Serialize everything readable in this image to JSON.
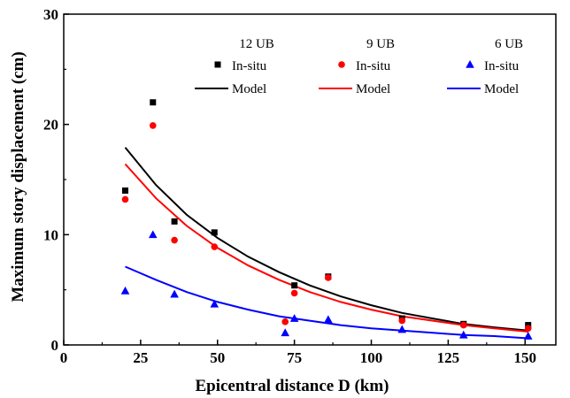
{
  "chart_data": {
    "type": "scatter",
    "xlabel": "Epicentral distance D (km)",
    "ylabel": "Maximum story displacement (cm)",
    "xlim": [
      0,
      160
    ],
    "ylim": [
      0,
      30
    ],
    "xticks": [
      0,
      25,
      50,
      75,
      100,
      125,
      150
    ],
    "yticks": [
      0,
      10,
      20,
      30
    ],
    "grid": false,
    "legend_placement": "top",
    "groups": [
      {
        "name": "12 UB",
        "color": "#000000",
        "marker": "square",
        "point_label": "In-situ",
        "line_label": "Model",
        "points": [
          {
            "x": 20,
            "y": 14.0
          },
          {
            "x": 29,
            "y": 22.0
          },
          {
            "x": 36,
            "y": 11.2
          },
          {
            "x": 49,
            "y": 10.2
          },
          {
            "x": 75,
            "y": 5.4
          },
          {
            "x": 86,
            "y": 6.2
          },
          {
            "x": 110,
            "y": 2.4
          },
          {
            "x": 130,
            "y": 1.9
          },
          {
            "x": 151,
            "y": 1.8
          }
        ],
        "model": [
          {
            "x": 20,
            "y": 17.9
          },
          {
            "x": 30,
            "y": 14.5
          },
          {
            "x": 40,
            "y": 11.8
          },
          {
            "x": 50,
            "y": 9.7
          },
          {
            "x": 60,
            "y": 8.0
          },
          {
            "x": 70,
            "y": 6.6
          },
          {
            "x": 80,
            "y": 5.4
          },
          {
            "x": 90,
            "y": 4.4
          },
          {
            "x": 100,
            "y": 3.6
          },
          {
            "x": 110,
            "y": 2.9
          },
          {
            "x": 120,
            "y": 2.4
          },
          {
            "x": 130,
            "y": 1.9
          },
          {
            "x": 140,
            "y": 1.6
          },
          {
            "x": 151,
            "y": 1.3
          }
        ]
      },
      {
        "name": "9 UB",
        "color": "#ff0000",
        "marker": "circle",
        "point_label": "In-situ",
        "line_label": "Model",
        "points": [
          {
            "x": 20,
            "y": 13.2
          },
          {
            "x": 29,
            "y": 19.9
          },
          {
            "x": 36,
            "y": 9.5
          },
          {
            "x": 49,
            "y": 8.9
          },
          {
            "x": 72,
            "y": 2.1
          },
          {
            "x": 75,
            "y": 4.7
          },
          {
            "x": 86,
            "y": 6.1
          },
          {
            "x": 110,
            "y": 2.2
          },
          {
            "x": 130,
            "y": 1.8
          },
          {
            "x": 151,
            "y": 1.5
          }
        ],
        "model": [
          {
            "x": 20,
            "y": 16.4
          },
          {
            "x": 30,
            "y": 13.3
          },
          {
            "x": 40,
            "y": 10.8
          },
          {
            "x": 50,
            "y": 8.8
          },
          {
            "x": 60,
            "y": 7.2
          },
          {
            "x": 70,
            "y": 5.9
          },
          {
            "x": 80,
            "y": 4.8
          },
          {
            "x": 90,
            "y": 3.9
          },
          {
            "x": 100,
            "y": 3.2
          },
          {
            "x": 110,
            "y": 2.6
          },
          {
            "x": 120,
            "y": 2.2
          },
          {
            "x": 130,
            "y": 1.8
          },
          {
            "x": 140,
            "y": 1.5
          },
          {
            "x": 151,
            "y": 1.2
          }
        ]
      },
      {
        "name": "6 UB",
        "color": "#0000ff",
        "marker": "triangle",
        "point_label": "In-situ",
        "line_label": "Model",
        "points": [
          {
            "x": 20,
            "y": 4.9
          },
          {
            "x": 29,
            "y": 10.0
          },
          {
            "x": 36,
            "y": 4.6
          },
          {
            "x": 49,
            "y": 3.7
          },
          {
            "x": 72,
            "y": 1.1
          },
          {
            "x": 75,
            "y": 2.4
          },
          {
            "x": 86,
            "y": 2.3
          },
          {
            "x": 110,
            "y": 1.4
          },
          {
            "x": 130,
            "y": 0.9
          },
          {
            "x": 151,
            "y": 0.8
          }
        ],
        "model": [
          {
            "x": 20,
            "y": 7.1
          },
          {
            "x": 30,
            "y": 5.9
          },
          {
            "x": 40,
            "y": 4.8
          },
          {
            "x": 50,
            "y": 3.9
          },
          {
            "x": 60,
            "y": 3.2
          },
          {
            "x": 70,
            "y": 2.6
          },
          {
            "x": 80,
            "y": 2.2
          },
          {
            "x": 90,
            "y": 1.8
          },
          {
            "x": 100,
            "y": 1.5
          },
          {
            "x": 110,
            "y": 1.3
          },
          {
            "x": 120,
            "y": 1.1
          },
          {
            "x": 130,
            "y": 0.9
          },
          {
            "x": 140,
            "y": 0.8
          },
          {
            "x": 151,
            "y": 0.6
          }
        ]
      }
    ]
  }
}
